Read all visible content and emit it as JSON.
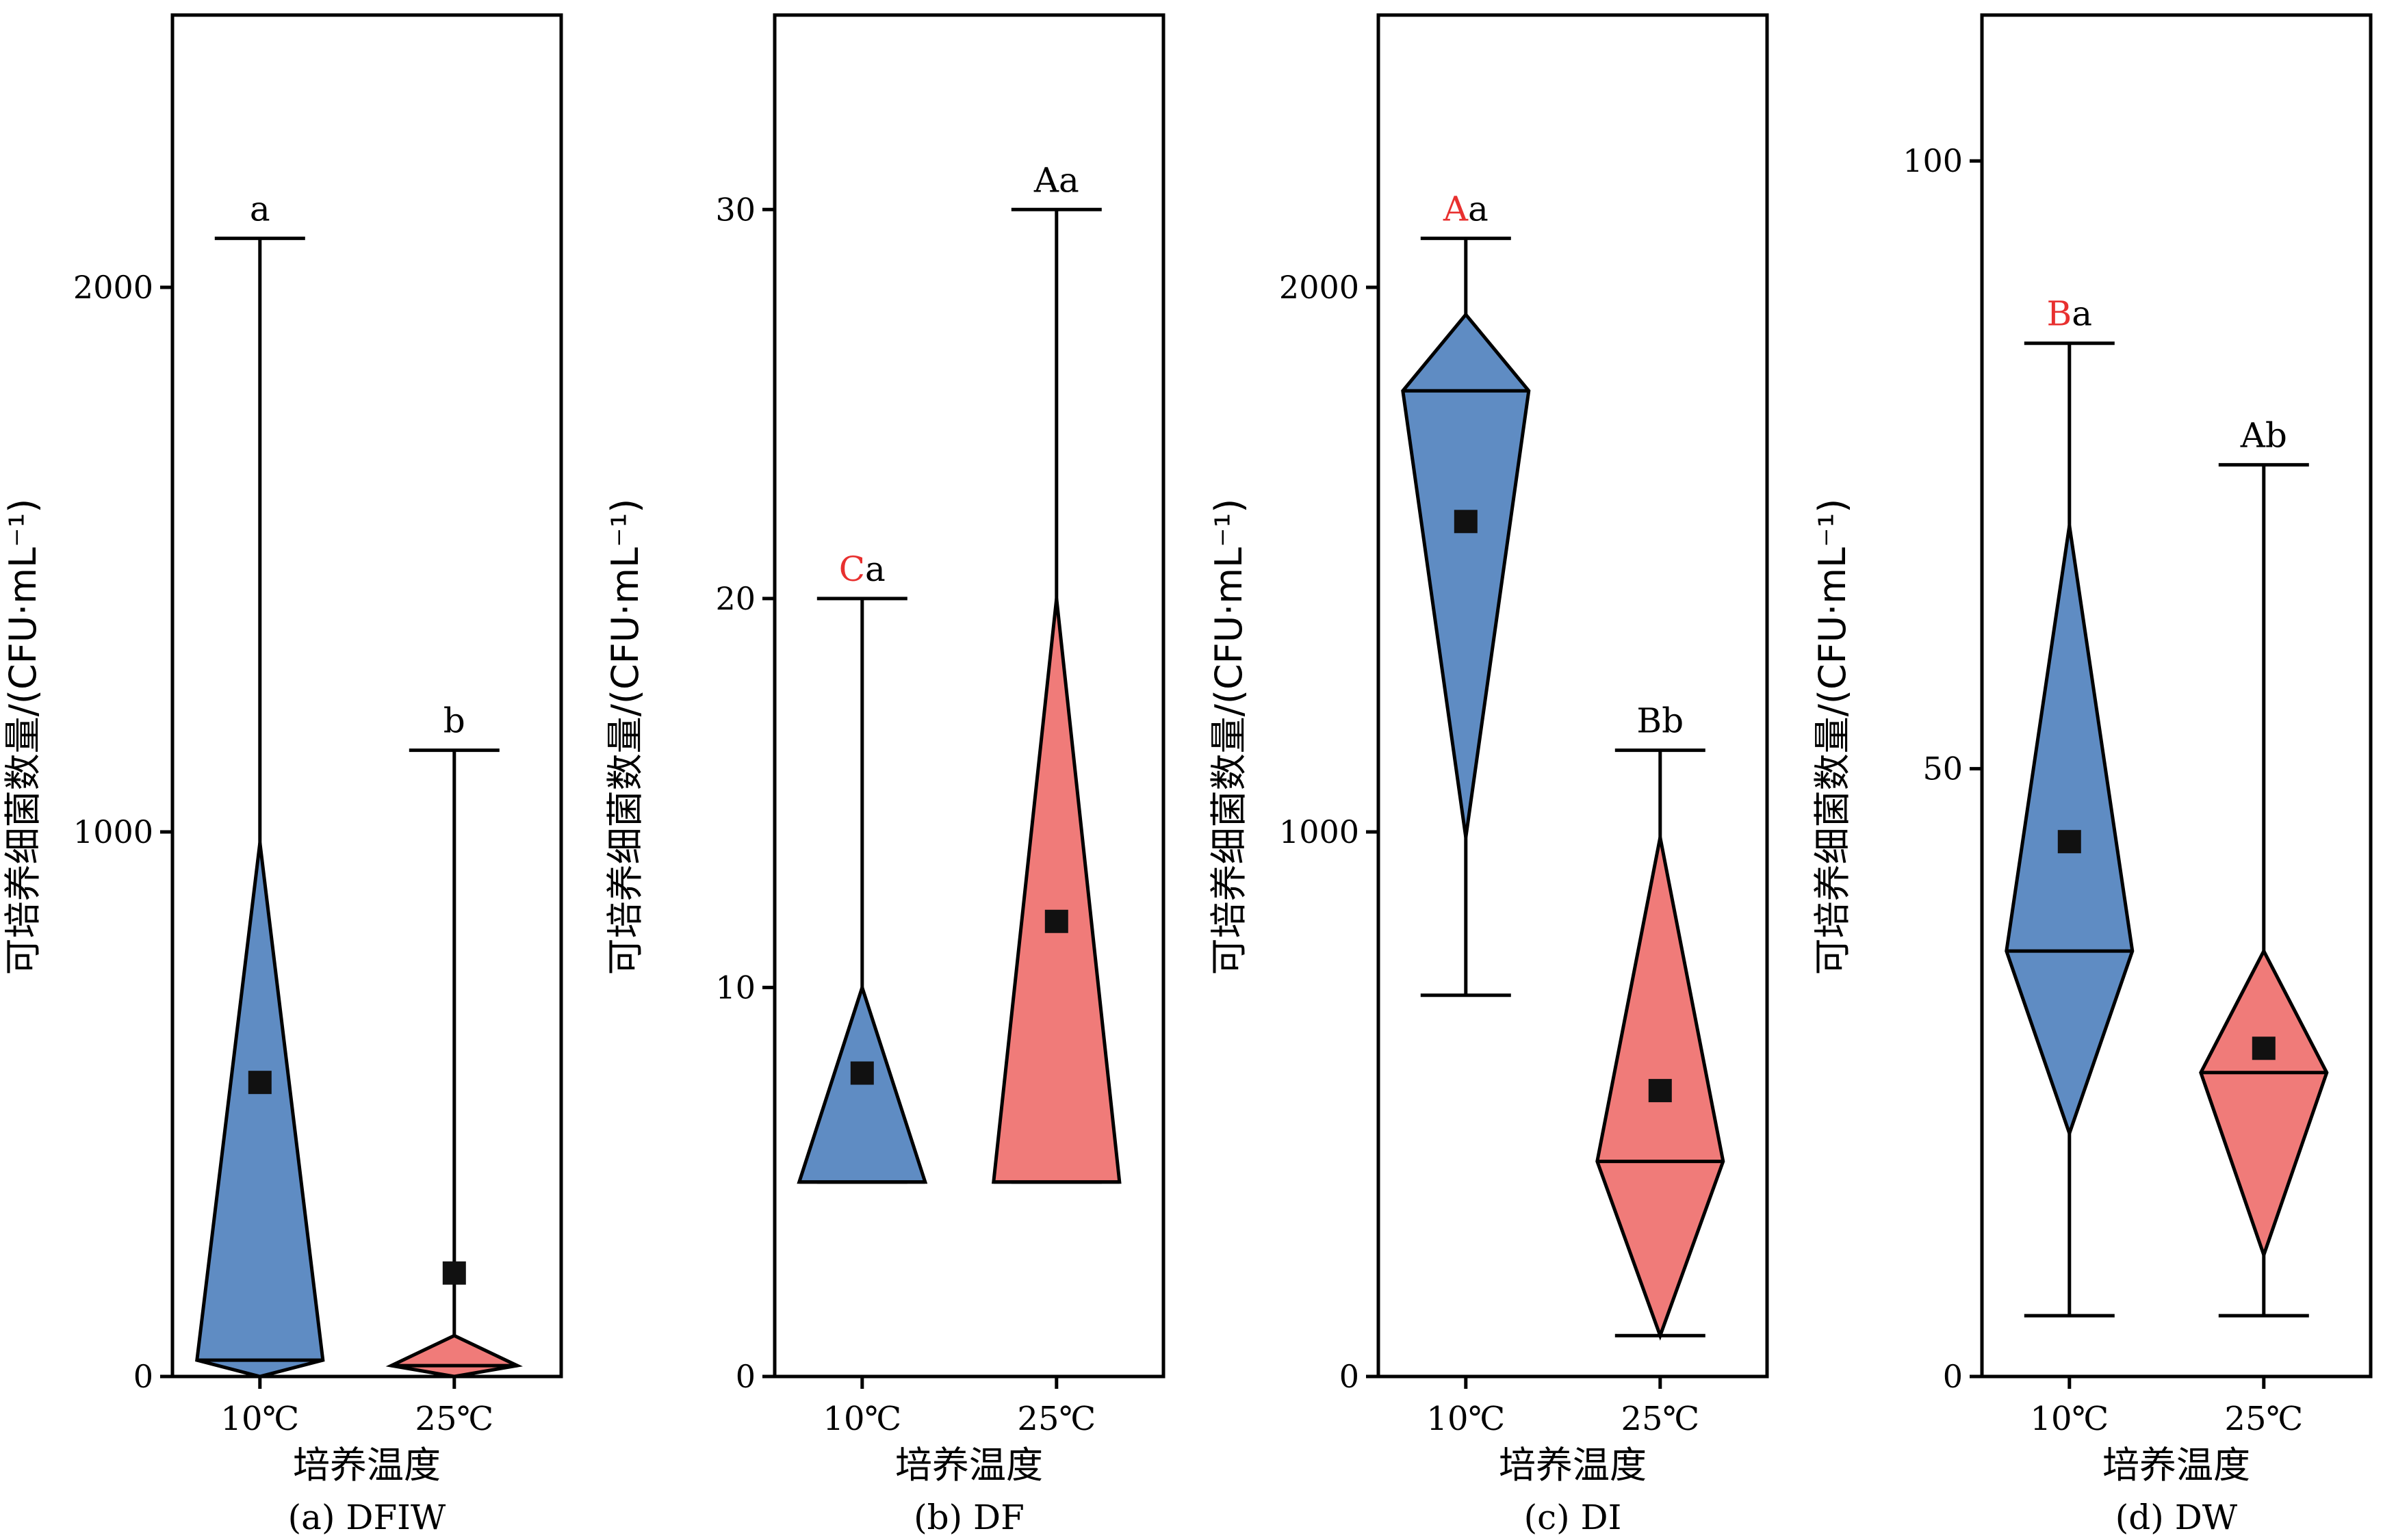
{
  "colors": {
    "blue": "#5f8cc3",
    "red": "#f07b79",
    "sig_red": "#e8302f",
    "line": "#000000"
  },
  "chart_data": [
    {
      "type": "diamond-box",
      "caption": "(a) DFIW",
      "xlabel": "培养温度",
      "ylabel": "可培养细菌数量/(CFU·mL⁻¹)",
      "ylim": [
        0,
        2500
      ],
      "yticks": [
        0,
        1000,
        2000
      ],
      "categories": [
        {
          "label": "10℃",
          "color": "blue",
          "whisker_low": 0,
          "whisker_high": 2090,
          "box_low": 0,
          "box_high": 980,
          "median": 30,
          "mean": 540,
          "mean_marker": true,
          "letters": [
            {
              "text": "a",
              "highlight": false
            }
          ]
        },
        {
          "label": "25℃",
          "color": "red",
          "whisker_low": 0,
          "whisker_high": 1150,
          "box_low": 0,
          "box_high": 75,
          "median": 20,
          "mean": 190,
          "mean_marker": true,
          "letters": [
            {
              "text": "b",
              "highlight": false
            }
          ]
        }
      ]
    },
    {
      "type": "diamond-box",
      "caption": "(b) DF",
      "xlabel": "培养温度",
      "ylabel": "可培养细菌数量/(CFU·mL⁻¹)",
      "ylim": [
        0,
        35
      ],
      "yticks": [
        0,
        10,
        20,
        30
      ],
      "categories": [
        {
          "label": "10℃",
          "color": "blue",
          "whisker_low": 5,
          "whisker_high": 20,
          "box_low": 5,
          "box_high": 10,
          "median": 5,
          "mean": 7.8,
          "mean_marker": true,
          "letters": [
            {
              "text": "C",
              "highlight": true
            },
            {
              "text": "a",
              "highlight": false
            }
          ]
        },
        {
          "label": "25℃",
          "color": "red",
          "whisker_low": 5,
          "whisker_high": 30,
          "box_low": 5,
          "box_high": 20,
          "median": 5,
          "mean": 11.7,
          "mean_marker": true,
          "letters": [
            {
              "text": "A",
              "highlight": false
            },
            {
              "text": "a",
              "highlight": false
            }
          ]
        }
      ]
    },
    {
      "type": "diamond-box",
      "caption": "(c) DI",
      "xlabel": "培养温度",
      "ylabel": "可培养细菌数量/(CFU·mL⁻¹)",
      "ylim": [
        0,
        2500
      ],
      "yticks": [
        0,
        1000,
        2000
      ],
      "categories": [
        {
          "label": "10℃",
          "color": "blue",
          "whisker_low": 700,
          "whisker_high": 2090,
          "box_low": 990,
          "box_high": 1950,
          "median": 1810,
          "mean": 1570,
          "mean_marker": true,
          "letters": [
            {
              "text": "A",
              "highlight": true
            },
            {
              "text": "a",
              "highlight": false
            }
          ]
        },
        {
          "label": "25℃",
          "color": "red",
          "whisker_low": 75,
          "whisker_high": 1150,
          "box_low": 75,
          "box_high": 990,
          "median": 395,
          "mean": 525,
          "mean_marker": true,
          "letters": [
            {
              "text": "B",
              "highlight": false
            },
            {
              "text": "b",
              "highlight": false
            }
          ]
        }
      ]
    },
    {
      "type": "diamond-box",
      "caption": "(d) DW",
      "xlabel": "培养温度",
      "ylabel": "可培养细菌数量/(CFU·mL⁻¹)",
      "ylim": [
        0,
        112
      ],
      "yticks": [
        0,
        50,
        100
      ],
      "categories": [
        {
          "label": "10℃",
          "color": "blue",
          "whisker_low": 5,
          "whisker_high": 85,
          "box_low": 20,
          "box_high": 70,
          "median": 35,
          "mean": 44,
          "mean_marker": true,
          "letters": [
            {
              "text": "B",
              "highlight": true
            },
            {
              "text": "a",
              "highlight": false
            }
          ]
        },
        {
          "label": "25℃",
          "color": "red",
          "whisker_low": 5,
          "whisker_high": 75,
          "box_low": 10,
          "box_high": 35,
          "median": 25,
          "mean": 27,
          "mean_marker": true,
          "letters": [
            {
              "text": "A",
              "highlight": false
            },
            {
              "text": "b",
              "highlight": false
            }
          ]
        }
      ]
    }
  ]
}
